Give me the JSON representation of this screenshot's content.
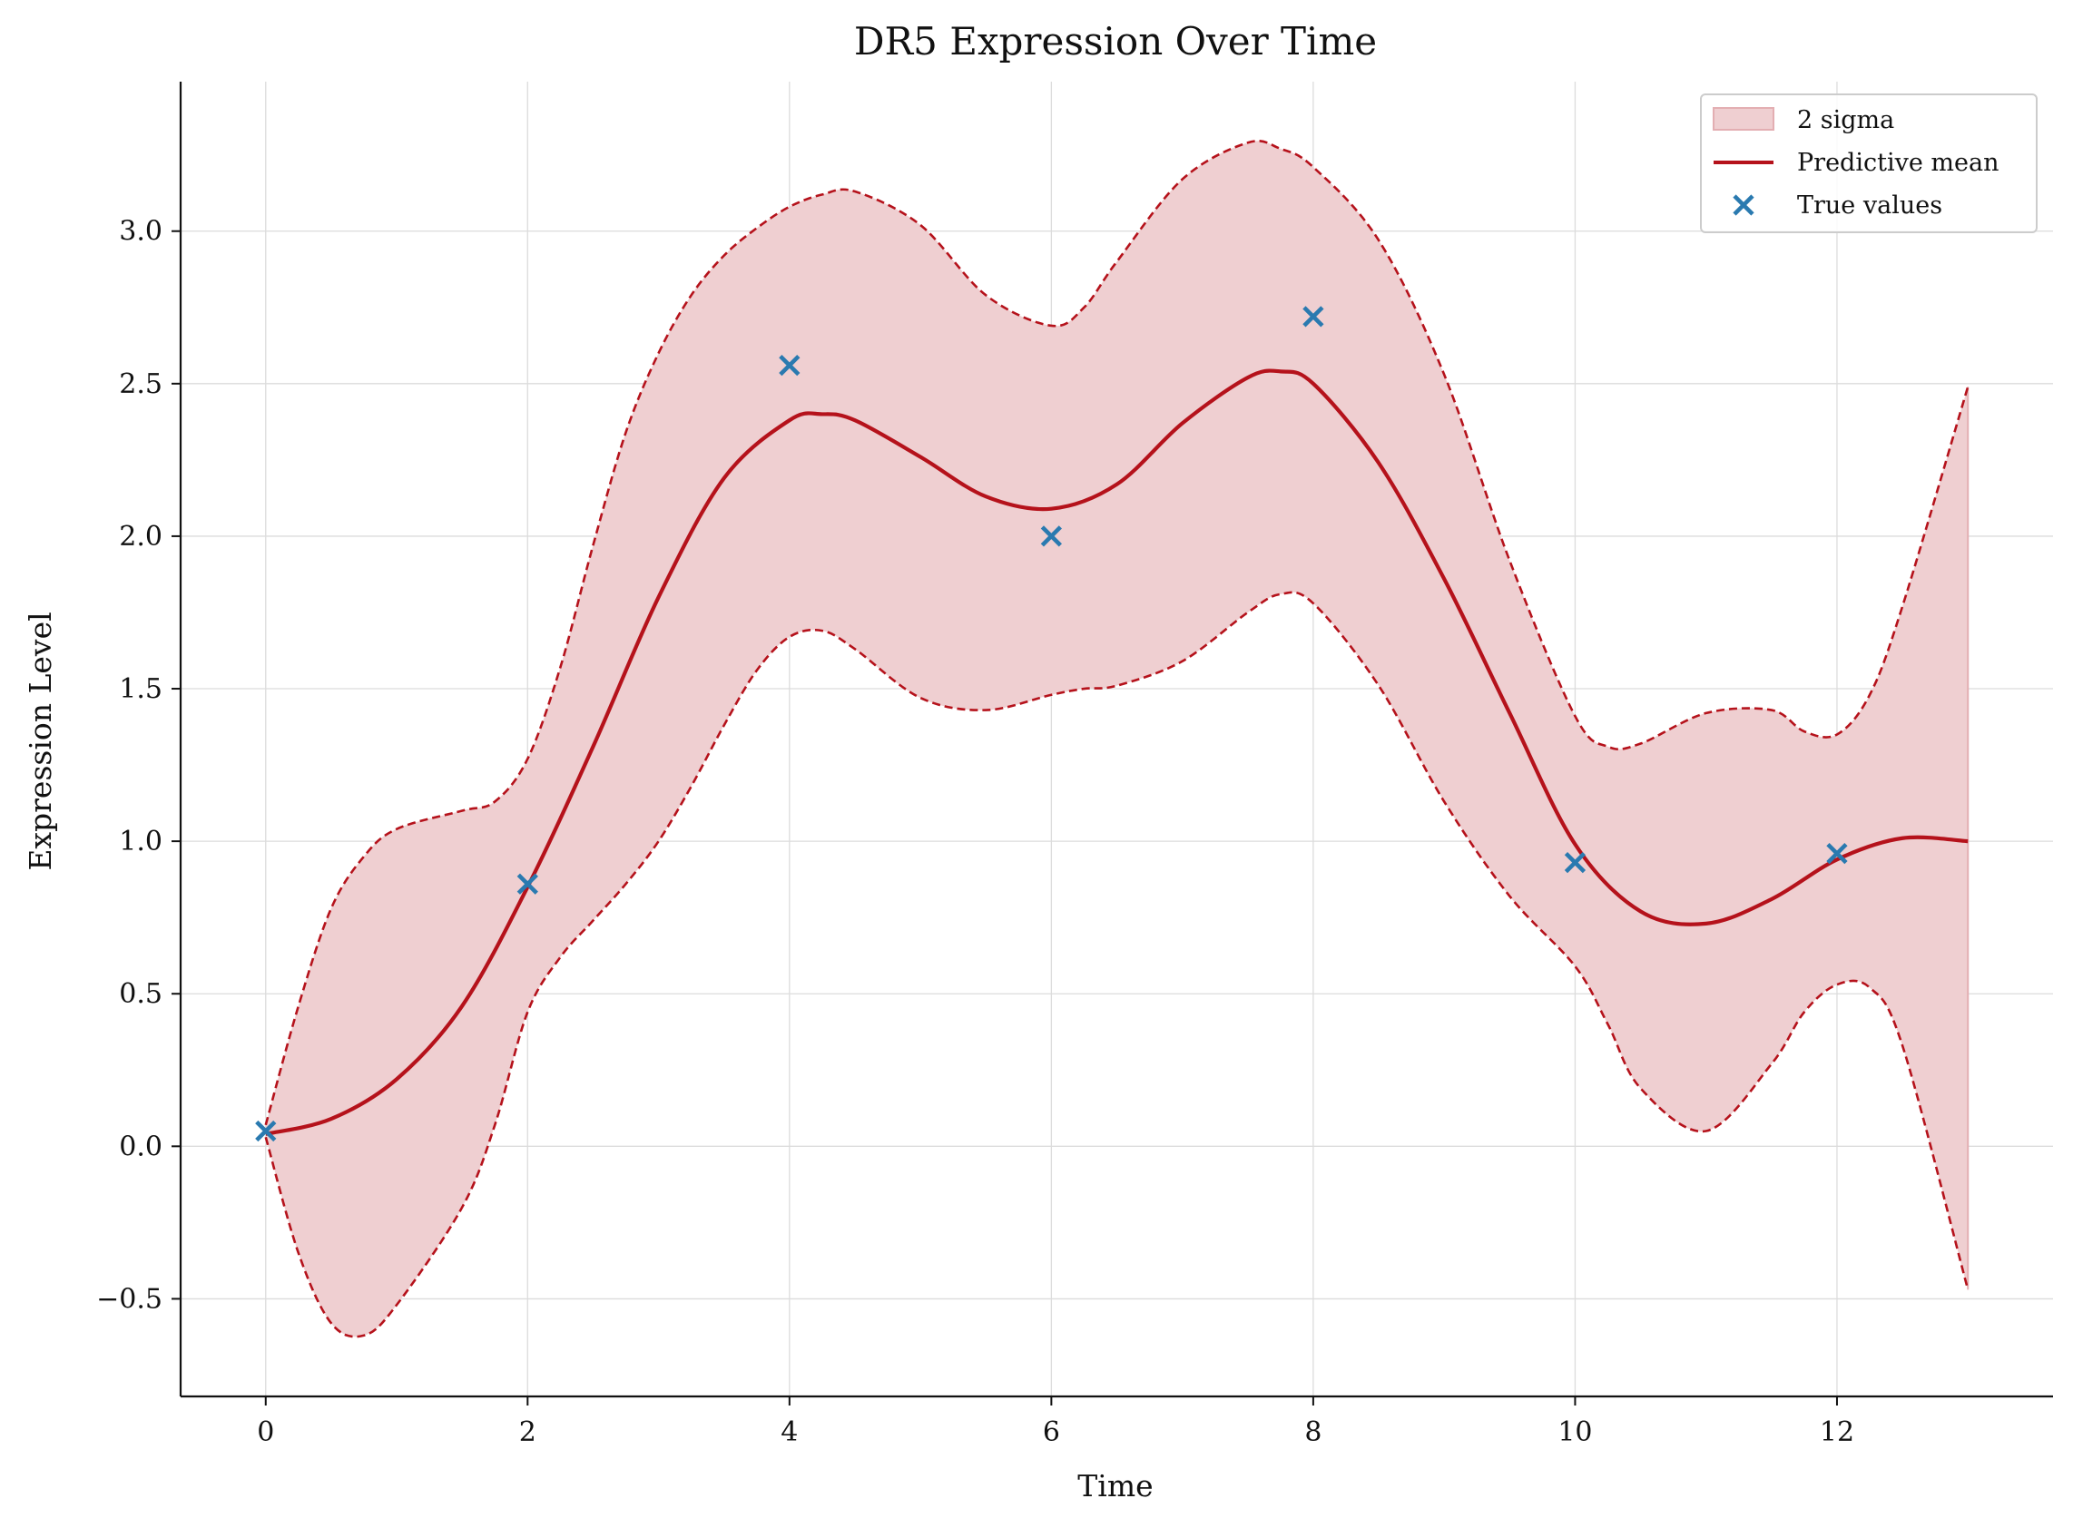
{
  "chart_data": {
    "type": "line",
    "title": "DR5 Expression Over Time",
    "xlabel": "Time",
    "ylabel": "Expression Level",
    "xlim": [
      -0.65,
      13.65
    ],
    "ylim": [
      -0.82,
      3.49
    ],
    "x_ticks": [
      0,
      2,
      4,
      6,
      8,
      10,
      12
    ],
    "x_tick_labels": [
      "0",
      "2",
      "4",
      "6",
      "8",
      "10",
      "12"
    ],
    "y_ticks": [
      -0.5,
      0.0,
      0.5,
      1.0,
      1.5,
      2.0,
      2.5,
      3.0
    ],
    "y_tick_labels": [
      "−0.5",
      "0.0",
      "0.5",
      "1.0",
      "1.5",
      "2.0",
      "2.5",
      "3.0"
    ],
    "grid": true,
    "legend": {
      "position": "top-right",
      "entries": [
        "2 sigma",
        "Predictive mean",
        "True values"
      ]
    },
    "colors": {
      "mean": "#b5121b",
      "band_fill": "#efcfd1",
      "band_edge": "#b5121b",
      "points": "#2a7ab0",
      "grid": "#dcdcdc",
      "axis": "#111111"
    },
    "series": [
      {
        "name": "Predictive mean",
        "kind": "line",
        "x": [
          0,
          0.5,
          1,
          1.5,
          2,
          2.5,
          3,
          3.5,
          4,
          4.25,
          4.5,
          5,
          5.5,
          6,
          6.5,
          7,
          7.5,
          7.75,
          8,
          8.5,
          9,
          9.5,
          10,
          10.5,
          11,
          11.5,
          12,
          12.5,
          13
        ],
        "y": [
          0.04,
          0.09,
          0.22,
          0.46,
          0.85,
          1.31,
          1.8,
          2.19,
          2.38,
          2.4,
          2.38,
          2.26,
          2.13,
          2.09,
          2.17,
          2.37,
          2.52,
          2.54,
          2.5,
          2.24,
          1.86,
          1.42,
          0.99,
          0.77,
          0.73,
          0.81,
          0.94,
          1.01,
          1.0
        ]
      },
      {
        "name": "2 sigma",
        "kind": "band",
        "x": [
          0,
          0.25,
          0.5,
          0.75,
          1,
          1.5,
          1.75,
          2,
          2.25,
          2.5,
          2.75,
          3,
          3.25,
          3.5,
          3.75,
          4,
          4.25,
          4.5,
          5,
          5.5,
          6,
          6.25,
          6.5,
          7,
          7.5,
          7.75,
          8,
          8.5,
          9,
          9.5,
          10,
          10.25,
          10.5,
          11,
          11.5,
          11.75,
          12,
          12.25,
          12.5,
          13
        ],
        "upper": [
          0.07,
          0.46,
          0.78,
          0.95,
          1.04,
          1.1,
          1.13,
          1.27,
          1.57,
          1.97,
          2.34,
          2.6,
          2.79,
          2.92,
          3.01,
          3.08,
          3.12,
          3.13,
          3.02,
          2.79,
          2.69,
          2.75,
          2.9,
          3.17,
          3.29,
          3.27,
          3.21,
          2.97,
          2.53,
          1.92,
          1.41,
          1.31,
          1.32,
          1.42,
          1.43,
          1.36,
          1.35,
          1.48,
          1.77,
          2.49
        ],
        "lower": [
          0.03,
          -0.35,
          -0.58,
          -0.62,
          -0.52,
          -0.2,
          0.07,
          0.44,
          0.62,
          0.74,
          0.86,
          1.0,
          1.18,
          1.38,
          1.56,
          1.67,
          1.69,
          1.63,
          1.47,
          1.43,
          1.48,
          1.5,
          1.51,
          1.59,
          1.75,
          1.81,
          1.78,
          1.51,
          1.13,
          0.82,
          0.59,
          0.4,
          0.19,
          0.05,
          0.27,
          0.44,
          0.53,
          0.52,
          0.33,
          -0.47
        ]
      },
      {
        "name": "True values",
        "kind": "scatter",
        "x": [
          0,
          2,
          4,
          6,
          8,
          10,
          12
        ],
        "y": [
          0.05,
          0.86,
          2.56,
          2.0,
          2.72,
          0.93,
          0.96
        ]
      }
    ]
  }
}
